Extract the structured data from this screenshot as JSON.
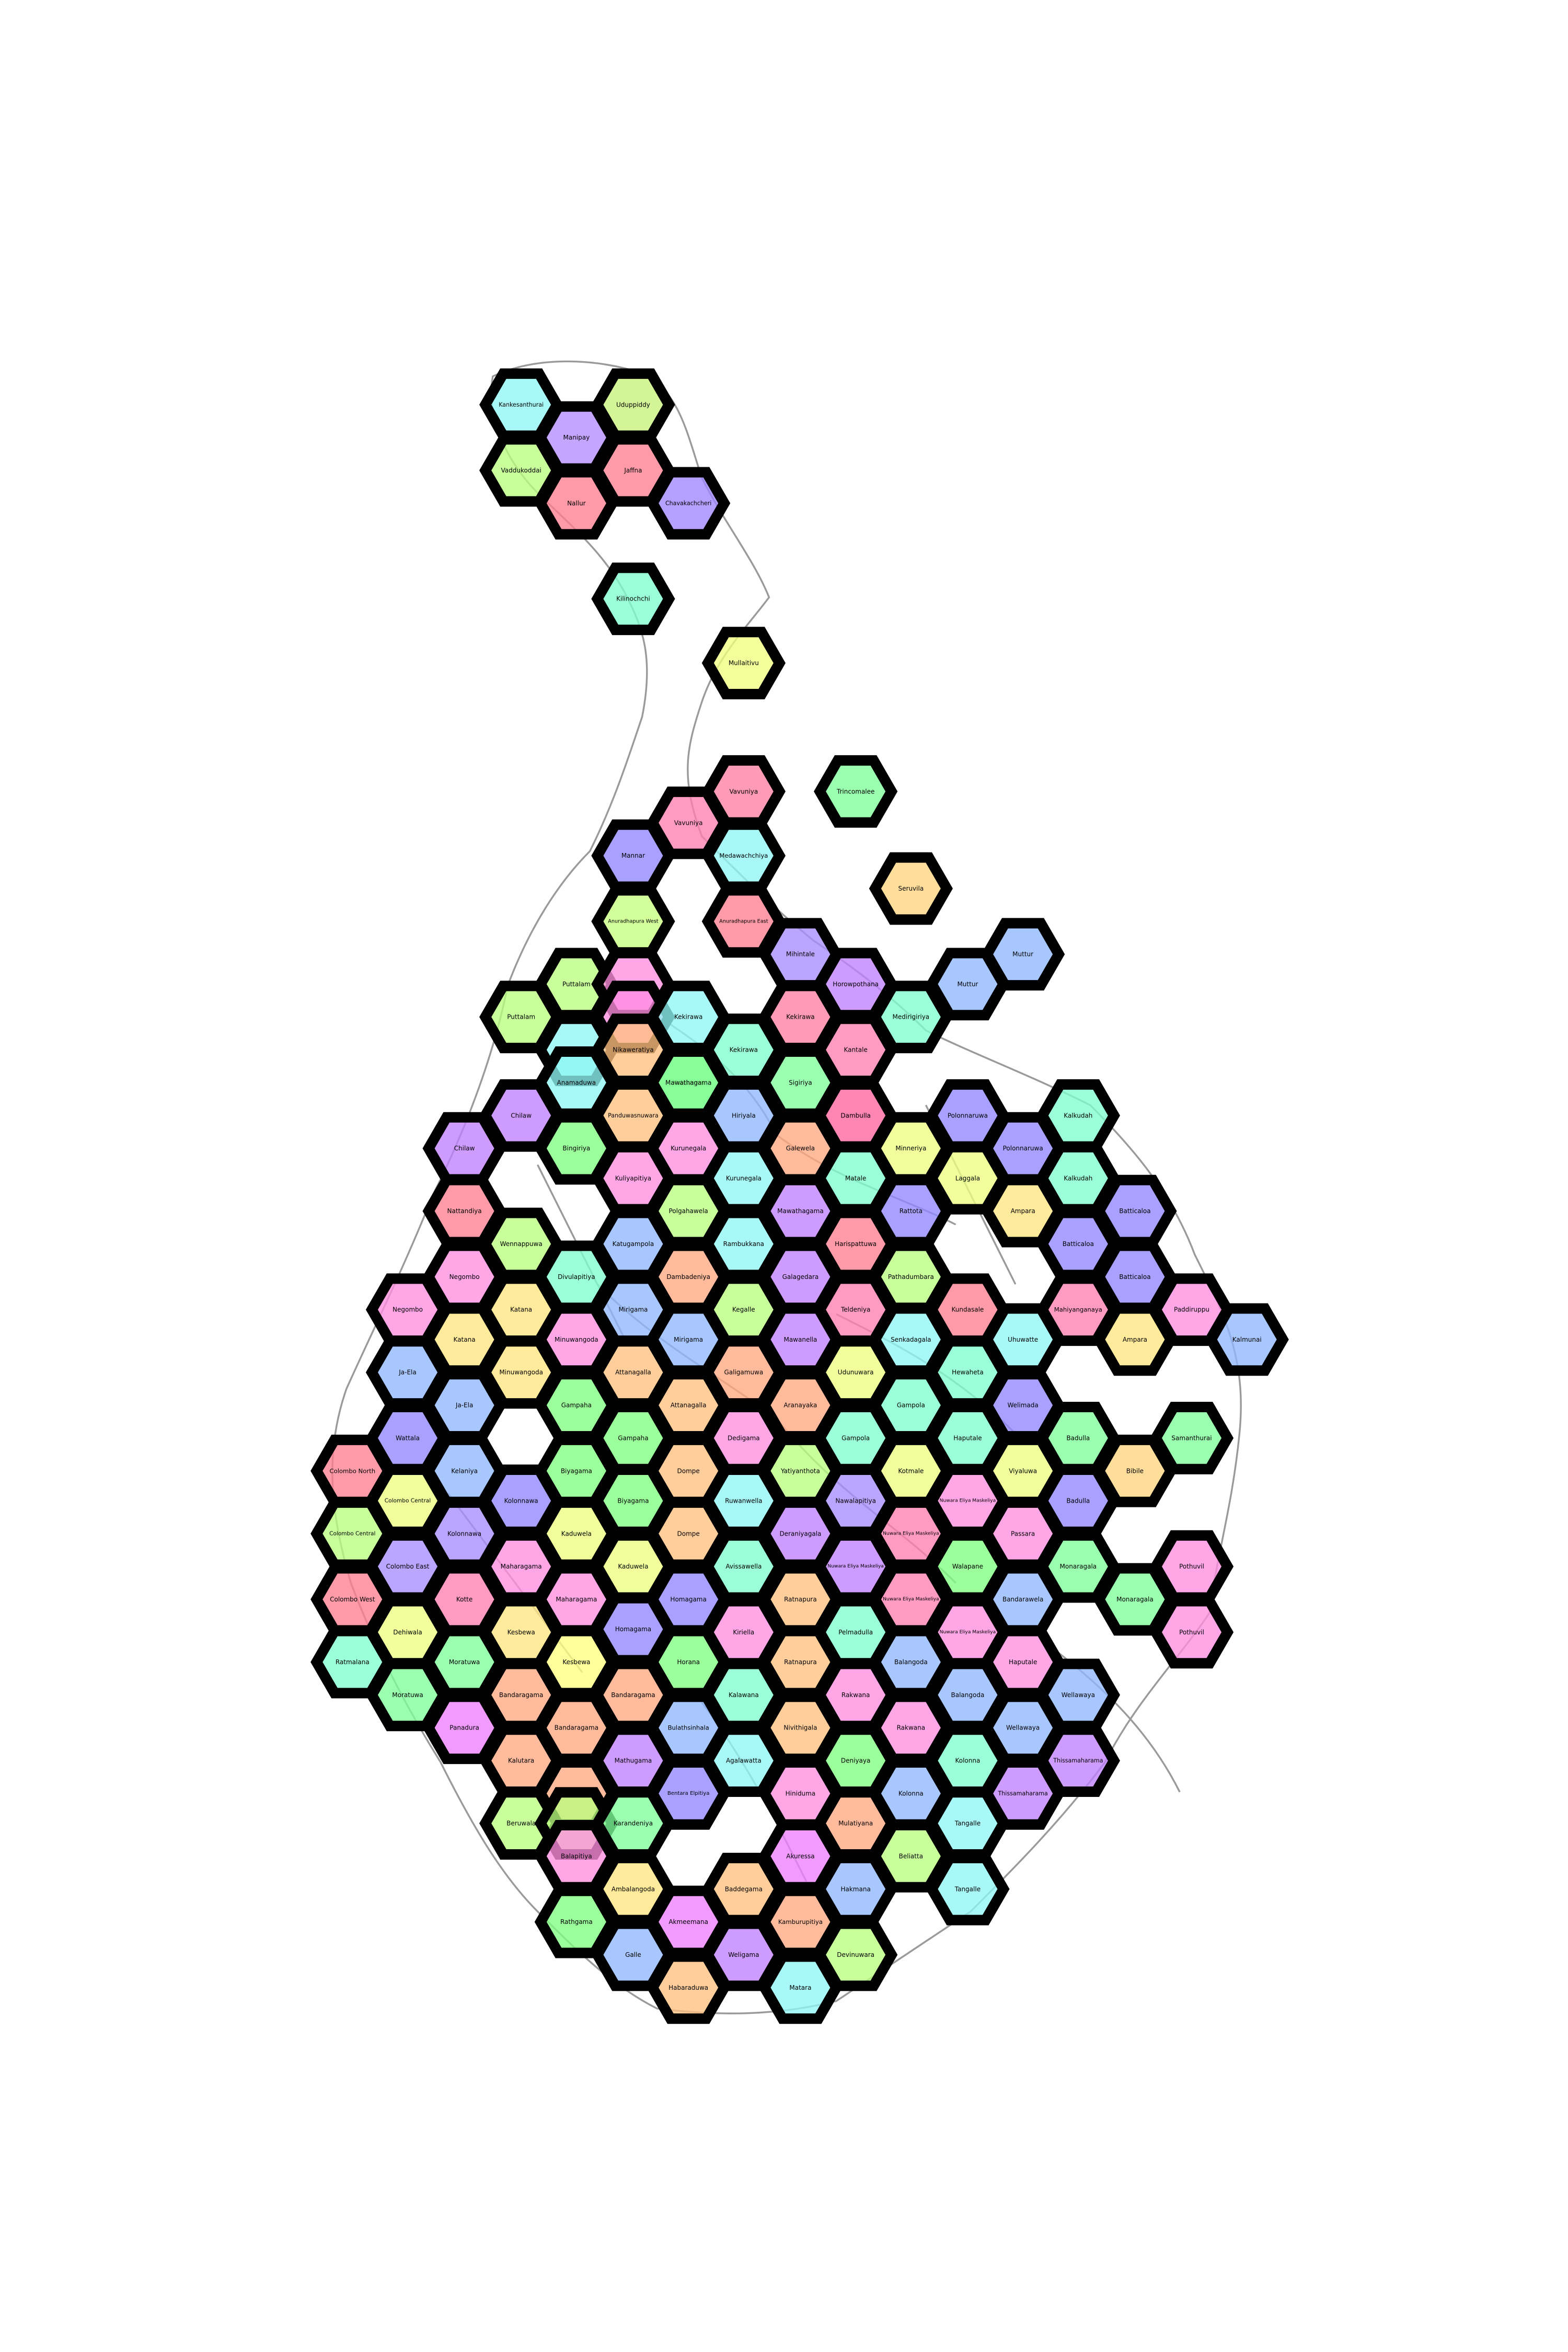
{
  "palette": [
    "#8ef6f3",
    "#ff7f8f",
    "#b8ff7f",
    "#a88cff",
    "#ff8de0",
    "#ffd57f",
    "#7fffd0",
    "#8fb7ff",
    "#ffa87f",
    "#ecff7f",
    "#c07fff",
    "#7fff7f"
  ],
  "hexes": [
    {
      "label": "Kankesanthurai",
      "color": "#8ef6f3"
    },
    {
      "label": "Uduppiddy",
      "color": "#c7f27a"
    },
    {
      "label": "Manipay",
      "color": "#b48cff"
    },
    {
      "label": "Vaddukoddai",
      "color": "#b8ff7f"
    },
    {
      "label": "Jaffna",
      "color": "#ff7f8f"
    },
    {
      "label": "Nallur",
      "color": "#ff7f8f"
    },
    {
      "label": "Chavakachcheri",
      "color": "#9d85ff"
    },
    {
      "label": "Kilinochchi",
      "color": "#7fffd0"
    },
    {
      "label": "Mullaitivu",
      "color": "#f0ff7f"
    },
    {
      "label": "Vavuniya",
      "color": "#ff7f9f"
    },
    {
      "label": "Trincomalee",
      "color": "#7fff9a"
    },
    {
      "label": "Vavuniya",
      "color": "#ff7fb0"
    },
    {
      "label": "Mannar",
      "color": "#8f86ff"
    },
    {
      "label": "Medawachchiya",
      "color": "#8ef6f3"
    },
    {
      "label": "Seruvila",
      "color": "#ffd57f"
    },
    {
      "label": "Anuradhapura West",
      "color": "#c6ff7f"
    },
    {
      "label": "Anuradhapura East",
      "color": "#ff7f8f"
    },
    {
      "label": "Mihintale",
      "color": "#a78cff"
    },
    {
      "label": "Muttur",
      "color": "#8fb7ff"
    },
    {
      "label": "Puttalam",
      "color": "#b8ff7f"
    },
    {
      "label": "Kalawewa",
      "color": "#ff8de0"
    },
    {
      "label": "Horowpothana",
      "color": "#c07fff"
    },
    {
      "label": "Muttur",
      "color": "#8fb7ff"
    },
    {
      "label": "Puttalam",
      "color": "#b8ff7f"
    },
    {
      "label": "Galgamuwa",
      "color": "#ff8de0"
    },
    {
      "label": "Kekirawa",
      "color": "#8ef6f3"
    },
    {
      "label": "Kekirawa",
      "color": "#ff7f9f"
    },
    {
      "label": "Kantale",
      "color": "#ff7fb0"
    },
    {
      "label": "Medirigiriya",
      "color": "#7fffd0"
    },
    {
      "label": "Anamaduwa",
      "color": "#8ef6f3"
    },
    {
      "label": "Nikaweratiya",
      "color": "#ffc07f"
    },
    {
      "label": "Kalawewa",
      "color": "#8ef6f3"
    },
    {
      "label": "Kekirawa",
      "color": "#7fffd0"
    },
    {
      "label": "Sigiriya",
      "color": "#7fff9a"
    },
    {
      "label": "Anamaduwa",
      "color": "#8ef6f3"
    },
    {
      "label": "Mawathagama",
      "color": "#7fff7f"
    },
    {
      "label": "Dambulla",
      "color": "#ff7fb0"
    },
    {
      "label": "Chilaw",
      "color": "#c07fff"
    },
    {
      "label": "Panduwasnuwara",
      "color": "#ffc07f"
    },
    {
      "label": "Hiriyala",
      "color": "#8fb7ff"
    },
    {
      "label": "Polonnaruwa",
      "color": "#8f86ff"
    },
    {
      "label": "Kalkudah",
      "color": "#7fffd0"
    },
    {
      "label": "Chilaw",
      "color": "#c07fff"
    },
    {
      "label": "Bingiriya",
      "color": "#7fff7f"
    },
    {
      "label": "Kurunegala",
      "color": "#ff8de0"
    },
    {
      "label": "Galewela",
      "color": "#ffa87f"
    },
    {
      "label": "Dambulla",
      "color": "#ff7fb0"
    },
    {
      "label": "Minneriya",
      "color": "#ecff7f"
    },
    {
      "label": "Polonnaruwa",
      "color": "#8f86ff"
    },
    {
      "label": "Kuliyapitiya",
      "color": "#ff8de0"
    },
    {
      "label": "Kurunegala",
      "color": "#8ef6f3"
    },
    {
      "label": "Matale",
      "color": "#7fffd0"
    },
    {
      "label": "Laggala",
      "color": "#ecff7f"
    },
    {
      "label": "Kalkudah",
      "color": "#7fffd0"
    },
    {
      "label": "Nattandiya",
      "color": "#ff7f8f"
    },
    {
      "label": "Polgahawela",
      "color": "#b8ff7f"
    },
    {
      "label": "Mawathagama",
      "color": "#c07fff"
    },
    {
      "label": "Rattota",
      "color": "#8f86ff"
    },
    {
      "label": "Ampara",
      "color": "#ffe67f"
    },
    {
      "label": "Batticaloa",
      "color": "#8f86ff"
    },
    {
      "label": "Wennappuwa",
      "color": "#b8ff7f"
    },
    {
      "label": "Katugampola",
      "color": "#8fb7ff"
    },
    {
      "label": "Rambukkana",
      "color": "#8ef6f3"
    },
    {
      "label": "Harispattuwa",
      "color": "#ff7f8f"
    },
    {
      "label": "Batticaloa",
      "color": "#8f86ff"
    },
    {
      "label": "Negombo",
      "color": "#ff8de0"
    },
    {
      "label": "Divulapitiya",
      "color": "#7fffd0"
    },
    {
      "label": "Dambadeniya",
      "color": "#ffa87f"
    },
    {
      "label": "Galagedara",
      "color": "#c07fff"
    },
    {
      "label": "Pathadumbara",
      "color": "#b8ff7f"
    },
    {
      "label": "Batticaloa",
      "color": "#8f86ff"
    },
    {
      "label": "Negombo",
      "color": "#ff8de0"
    },
    {
      "label": "Katana",
      "color": "#ffe67f"
    },
    {
      "label": "Mirigama",
      "color": "#8fb7ff"
    },
    {
      "label": "Kegalle",
      "color": "#b8ff7f"
    },
    {
      "label": "Teldeniya",
      "color": "#ff7fb0"
    },
    {
      "label": "Kundasale",
      "color": "#ff7f8f"
    },
    {
      "label": "Paddiruppu",
      "color": "#ff8de0"
    },
    {
      "label": "Katana",
      "color": "#ffe67f"
    },
    {
      "label": "Minuwangoda",
      "color": "#ff8de0"
    },
    {
      "label": "Mirigama",
      "color": "#8fb7ff"
    },
    {
      "label": "Mawanella",
      "color": "#c07fff"
    },
    {
      "label": "Senkadagala",
      "color": "#8ef6f3"
    },
    {
      "label": "Mahiyanganaya",
      "color": "#ff7fb0"
    },
    {
      "label": "Kalmunai",
      "color": "#8fb7ff"
    },
    {
      "label": "Ja-Ela",
      "color": "#8fb7ff"
    },
    {
      "label": "Minuwangoda",
      "color": "#ffe67f"
    },
    {
      "label": "Attanagalla",
      "color": "#ffc07f"
    },
    {
      "label": "Galigamuwa",
      "color": "#ffa87f"
    },
    {
      "label": "Udunuwara",
      "color": "#ecff7f"
    },
    {
      "label": "Hewaheta",
      "color": "#7fffd0"
    },
    {
      "label": "Uhuwatte",
      "color": "#8ef6f3"
    },
    {
      "label": "Ampara",
      "color": "#ffe67f"
    },
    {
      "label": "Ja-Ela",
      "color": "#8fb7ff"
    },
    {
      "label": "Gampaha",
      "color": "#7fff7f"
    },
    {
      "label": "Attanagalla",
      "color": "#ffc07f"
    },
    {
      "label": "Aranayaka",
      "color": "#ffa87f"
    },
    {
      "label": "Gampola",
      "color": "#7fffd0"
    },
    {
      "label": "Welimada",
      "color": "#8f86ff"
    },
    {
      "label": "Wattala",
      "color": "#8f86ff"
    },
    {
      "label": "Gampaha",
      "color": "#7fff7f"
    },
    {
      "label": "Dedigama",
      "color": "#ff8de0"
    },
    {
      "label": "Gampola",
      "color": "#7fffd0"
    },
    {
      "label": "Haputale",
      "color": "#7fffd0"
    },
    {
      "label": "Badulla",
      "color": "#7fff9a"
    },
    {
      "label": "Samanthurai",
      "color": "#7fff9a"
    },
    {
      "label": "Colombo North",
      "color": "#ff7f8f"
    },
    {
      "label": "Kelaniya",
      "color": "#8fb7ff"
    },
    {
      "label": "Biyagama",
      "color": "#7fff7f"
    },
    {
      "label": "Dompe",
      "color": "#ffc07f"
    },
    {
      "label": "Yatiyanthota",
      "color": "#b8ff7f"
    },
    {
      "label": "Kotmale",
      "color": "#ecff7f"
    },
    {
      "label": "Viyaluwa",
      "color": "#ecff7f"
    },
    {
      "label": "Bibile",
      "color": "#ffd57f"
    },
    {
      "label": "Colombo Central",
      "color": "#ecff7f"
    },
    {
      "label": "Kolonnawa",
      "color": "#8f86ff"
    },
    {
      "label": "Biyagama",
      "color": "#7fff7f"
    },
    {
      "label": "Ruwanwella",
      "color": "#8ef6f3"
    },
    {
      "label": "Nawalapitiya",
      "color": "#a78cff"
    },
    {
      "label": "Nuwara Eliya Maskeliya",
      "color": "#ff8de0"
    },
    {
      "label": "Badulla",
      "color": "#8f86ff"
    },
    {
      "label": "Colombo Central",
      "color": "#b8ff7f"
    },
    {
      "label": "Kolonnawa",
      "color": "#a78cff"
    },
    {
      "label": "Kaduwela",
      "color": "#ecff7f"
    },
    {
      "label": "Dompe",
      "color": "#ffc07f"
    },
    {
      "label": "Deraniyagala",
      "color": "#c07fff"
    },
    {
      "label": "Nuwara Eliya Maskeliya",
      "color": "#ff7fb0"
    },
    {
      "label": "Passara",
      "color": "#ff8de0"
    },
    {
      "label": "Colombo East",
      "color": "#a78cff"
    },
    {
      "label": "Maharagama",
      "color": "#ff8de0"
    },
    {
      "label": "Kaduwela",
      "color": "#ecff7f"
    },
    {
      "label": "Avissawella",
      "color": "#7fffd0"
    },
    {
      "label": "Nuwara Eliya Maskeliya",
      "color": "#c07fff"
    },
    {
      "label": "Walapane",
      "color": "#7fff7f"
    },
    {
      "label": "Monaragala",
      "color": "#7fff9a"
    },
    {
      "label": "Pothuvil",
      "color": "#ff8de0"
    },
    {
      "label": "Colombo West",
      "color": "#ff7f8f"
    },
    {
      "label": "Kotte",
      "color": "#ff7fb0"
    },
    {
      "label": "Maharagama",
      "color": "#ff8de0"
    },
    {
      "label": "Homagama",
      "color": "#8f86ff"
    },
    {
      "label": "Ratnapura",
      "color": "#ffc07f"
    },
    {
      "label": "Nuwara Eliya Maskeliya",
      "color": "#ff7fb0"
    },
    {
      "label": "Bandarawela",
      "color": "#8fb7ff"
    },
    {
      "label": "Monaragala",
      "color": "#7fff9a"
    },
    {
      "label": "Dehiwala",
      "color": "#ecff7f"
    },
    {
      "label": "Kesbewa",
      "color": "#ffe67f"
    },
    {
      "label": "Homagama",
      "color": "#8f86ff"
    },
    {
      "label": "Kiriella",
      "color": "#ff8de0"
    },
    {
      "label": "Pelmadulla",
      "color": "#7fffd0"
    },
    {
      "label": "Nuwara Eliya Maskeliya",
      "color": "#ff8de0"
    },
    {
      "label": "Pothuvil",
      "color": "#ff8de0"
    },
    {
      "label": "Ratmalana",
      "color": "#7fffd0"
    },
    {
      "label": "Moratuwa",
      "color": "#7fff9a"
    },
    {
      "label": "Kesbewa",
      "color": "#ffff7f"
    },
    {
      "label": "Horana",
      "color": "#7fff7f"
    },
    {
      "label": "Ratnapura",
      "color": "#ffc07f"
    },
    {
      "label": "Balangoda",
      "color": "#8fb7ff"
    },
    {
      "label": "Haputale",
      "color": "#ff8de0"
    },
    {
      "label": "Moratuwa",
      "color": "#7fff9a"
    },
    {
      "label": "Bandaragama",
      "color": "#ffa87f"
    },
    {
      "label": "Bandaragama",
      "color": "#ffa87f"
    },
    {
      "label": "Kalawana",
      "color": "#7fffd0"
    },
    {
      "label": "Rakwana",
      "color": "#ff8de0"
    },
    {
      "label": "Balangoda",
      "color": "#8fb7ff"
    },
    {
      "label": "Wellawaya",
      "color": "#8fb7ff"
    },
    {
      "label": "Panadura",
      "color": "#ee7fff"
    },
    {
      "label": "Bandaragama",
      "color": "#ffa87f"
    },
    {
      "label": "Kalutara",
      "color": "#ffa87f"
    },
    {
      "label": "Bulathsinhala",
      "color": "#8fb7ff"
    },
    {
      "label": "Nivithigala",
      "color": "#ffc07f"
    },
    {
      "label": "Rakwana",
      "color": "#ff8de0"
    },
    {
      "label": "Wellawaya",
      "color": "#8fb7ff"
    },
    {
      "label": "Kalutara",
      "color": "#ffa87f"
    },
    {
      "label": "Mathugama",
      "color": "#c07fff"
    },
    {
      "label": "Agalawatta",
      "color": "#8ef6f3"
    },
    {
      "label": "Deniyaya",
      "color": "#7fff7f"
    },
    {
      "label": "Kolonna",
      "color": "#8fb7ff"
    },
    {
      "label": "Thissamaharama",
      "color": "#c07fff"
    },
    {
      "label": "Beruwala",
      "color": "#b8ff7f"
    },
    {
      "label": "Bentara Elpitiya",
      "color": "#8f86ff"
    },
    {
      "label": "Hiniduma",
      "color": "#ff8de0"
    },
    {
      "label": "Kolonna",
      "color": "#7fffd0"
    },
    {
      "label": "Thissamaharama",
      "color": "#c07fff"
    },
    {
      "label": "Beruwala",
      "color": "#b8ff7f"
    },
    {
      "label": "Karandeniya",
      "color": "#7fff9a"
    },
    {
      "label": "Mulatiyana",
      "color": "#ffa87f"
    },
    {
      "label": "Tangalle",
      "color": "#8ef6f3"
    },
    {
      "label": "Balapitiya",
      "color": "#ff8de0"
    },
    {
      "label": "Akuressa",
      "color": "#ee7fff"
    },
    {
      "label": "Beliatta",
      "color": "#b8ff7f"
    },
    {
      "label": "Ambalangoda",
      "color": "#ffe67f"
    },
    {
      "label": "Baddegama",
      "color": "#ffc07f"
    },
    {
      "label": "Hakmana",
      "color": "#8fb7ff"
    },
    {
      "label": "Tangalle",
      "color": "#8ef6f3"
    },
    {
      "label": "Rathgama",
      "color": "#7fff7f"
    },
    {
      "label": "Akmeemana",
      "color": "#ee7fff"
    },
    {
      "label": "Kamburupitiya",
      "color": "#ffa87f"
    },
    {
      "label": "Galle",
      "color": "#8fb7ff"
    },
    {
      "label": "Weligama",
      "color": "#c07fff"
    },
    {
      "label": "Devinuwara",
      "color": "#b8ff7f"
    },
    {
      "label": "Habaraduwa",
      "color": "#ffc07f"
    },
    {
      "label": "Matara",
      "color": "#8ef6f3"
    }
  ]
}
